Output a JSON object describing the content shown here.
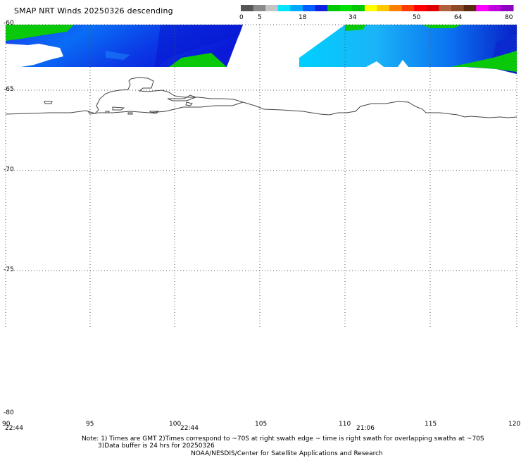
{
  "title": "SMAP NRT Winds  20250326 descending",
  "colorbar": {
    "ticks": [
      "0",
      "5",
      "18",
      "34",
      "50",
      "64",
      "80"
    ],
    "segments": [
      {
        "color": "#555555"
      },
      {
        "color": "#8a8a8a"
      },
      {
        "color": "#c4c4c4"
      },
      {
        "color": "#00e5ff"
      },
      {
        "color": "#00aaff"
      },
      {
        "color": "#005dff"
      },
      {
        "color": "#1020e0"
      },
      {
        "color": "#00c800"
      },
      {
        "color": "#00e000"
      },
      {
        "color": "#00c800"
      },
      {
        "color": "#ffff00"
      },
      {
        "color": "#ffc800"
      },
      {
        "color": "#ff8000"
      },
      {
        "color": "#ff3c00"
      },
      {
        "color": "#ff0000"
      },
      {
        "color": "#e00000"
      },
      {
        "color": "#b0603a"
      },
      {
        "color": "#8c4a2a"
      },
      {
        "color": "#5a2a10"
      },
      {
        "color": "#ff00ff"
      },
      {
        "color": "#c000e0"
      },
      {
        "color": "#9000c0"
      }
    ]
  },
  "axes": {
    "lat_labels": [
      "-60",
      "-65",
      "-70",
      "-75",
      "-80"
    ],
    "lon_labels": [
      "90",
      "95",
      "100",
      "105",
      "110",
      "115",
      "120"
    ]
  },
  "swath_times": [
    "22:44",
    "22:44",
    "21:06"
  ],
  "notes": {
    "line1": "Note: 1) Times are GMT 2)Times correspond to ~70S at right swath edge ~ time is right swath for overlapping swaths at ~70S",
    "line2": "3)Data buffer is 24 hrs for 20250326",
    "line3": "NOAA/NESDIS/Center for Satellite Applications and Research"
  },
  "colors": {
    "grid": "#555555",
    "coast": "#444444",
    "wind_low": "#00ccff",
    "wind_mid": "#0030e0",
    "wind_high": "#00d000"
  }
}
